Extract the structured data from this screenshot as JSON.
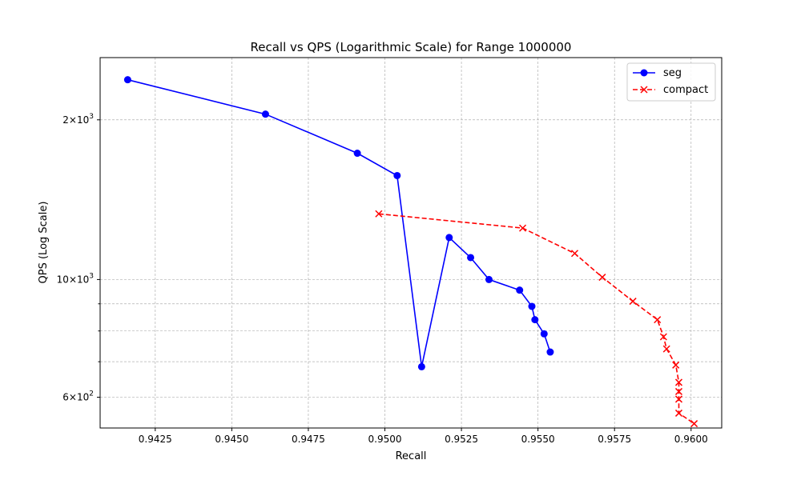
{
  "chart_data": {
    "type": "line",
    "title": "Recall vs QPS (Logarithmic Scale) for Range 1000000",
    "xlabel": "Recall",
    "ylabel": "QPS (Log Scale)",
    "xlim": [
      0.9407,
      0.961
    ],
    "ylim": [
      525,
      2620
    ],
    "y_scale": "log",
    "grid": true,
    "legend_position": "top-right",
    "x_ticks": [
      {
        "value": 0.9425,
        "label": "0.9425"
      },
      {
        "value": 0.945,
        "label": "0.9450"
      },
      {
        "value": 0.9475,
        "label": "0.9475"
      },
      {
        "value": 0.95,
        "label": "0.9500"
      },
      {
        "value": 0.9525,
        "label": "0.9525"
      },
      {
        "value": 0.955,
        "label": "0.9550"
      },
      {
        "value": 0.9575,
        "label": "0.9575"
      },
      {
        "value": 0.96,
        "label": "0.9600"
      }
    ],
    "y_major_ticks": [
      {
        "value": 600,
        "base": "6",
        "exp": "2"
      },
      {
        "value": 1000,
        "base": "10",
        "exp": "3"
      },
      {
        "value": 2000,
        "base": "2",
        "exp": "3"
      }
    ],
    "y_minor_ticks": [
      700,
      800,
      900
    ],
    "series": [
      {
        "name": "seg",
        "color": "#0000ff",
        "marker": "circle",
        "line_style": "solid",
        "x": [
          0.9416,
          0.9461,
          0.9491,
          0.9504,
          0.9512,
          0.9521,
          0.9528,
          0.9534,
          0.9544,
          0.9548,
          0.9549,
          0.9552,
          0.9554
        ],
        "y": [
          2380,
          2050,
          1730,
          1570,
          685,
          1200,
          1100,
          1000,
          955,
          890,
          840,
          790,
          730
        ]
      },
      {
        "name": "compact",
        "color": "#ff0000",
        "marker": "x",
        "line_style": "dashed",
        "x": [
          0.9498,
          0.9545,
          0.9562,
          0.9571,
          0.9581,
          0.9589,
          0.9591,
          0.9592,
          0.9595,
          0.9596,
          0.9596,
          0.9596,
          0.9596,
          0.9601
        ],
        "y": [
          1330,
          1250,
          1120,
          1010,
          910,
          840,
          780,
          740,
          690,
          640,
          615,
          595,
          560,
          535
        ]
      }
    ]
  }
}
